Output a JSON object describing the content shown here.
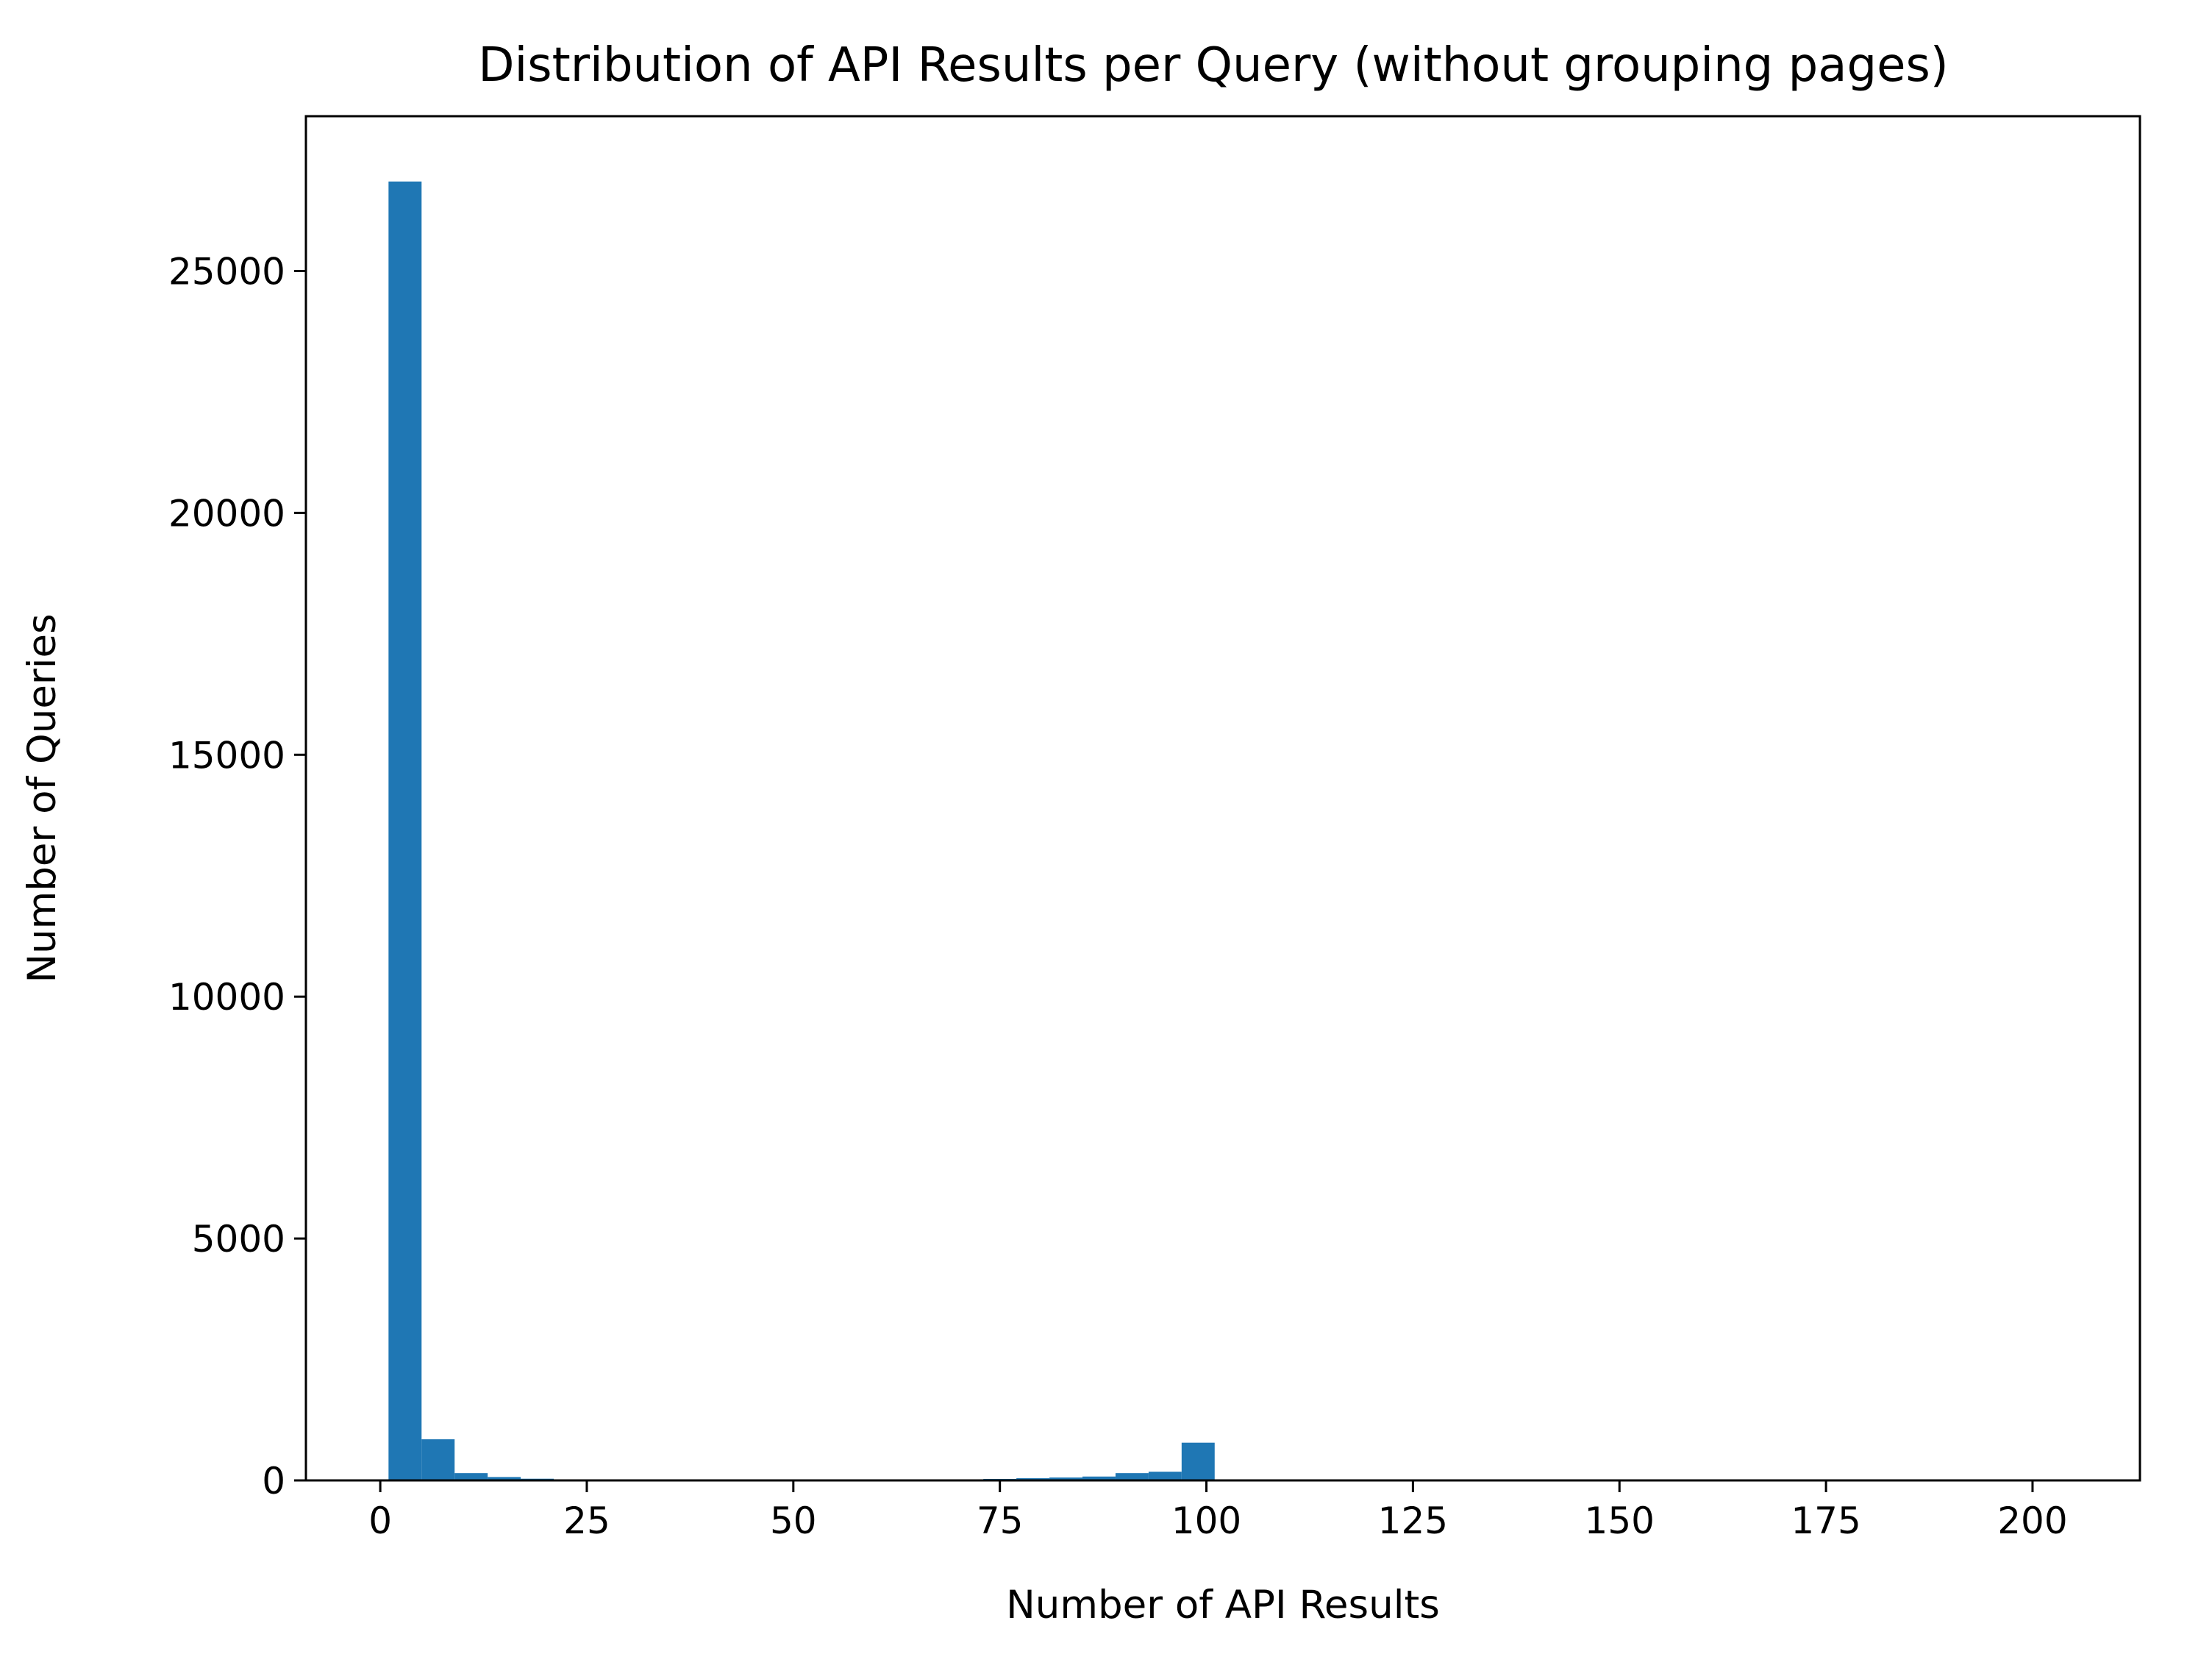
{
  "chart_data": {
    "type": "bar",
    "title": "Distribution of API Results per Query (without grouping pages)",
    "xlabel": "Number of API Results",
    "ylabel": "Number of Queries",
    "xlim": [
      -9,
      213
    ],
    "ylim": [
      0,
      28200
    ],
    "x_ticks": [
      0,
      25,
      50,
      75,
      100,
      125,
      150,
      175,
      200
    ],
    "y_ticks": [
      0,
      5000,
      10000,
      15000,
      20000,
      25000
    ],
    "bin_width": 4,
    "bins": [
      {
        "x0": 1,
        "value": 26850
      },
      {
        "x0": 5,
        "value": 850
      },
      {
        "x0": 9,
        "value": 150
      },
      {
        "x0": 13,
        "value": 70
      },
      {
        "x0": 17,
        "value": 35
      },
      {
        "x0": 21,
        "value": 15
      },
      {
        "x0": 25,
        "value": 10
      },
      {
        "x0": 29,
        "value": 6
      },
      {
        "x0": 33,
        "value": 5
      },
      {
        "x0": 37,
        "value": 4
      },
      {
        "x0": 41,
        "value": 4
      },
      {
        "x0": 45,
        "value": 3
      },
      {
        "x0": 49,
        "value": 3
      },
      {
        "x0": 53,
        "value": 3
      },
      {
        "x0": 57,
        "value": 3
      },
      {
        "x0": 61,
        "value": 3
      },
      {
        "x0": 65,
        "value": 5
      },
      {
        "x0": 69,
        "value": 10
      },
      {
        "x0": 73,
        "value": 30
      },
      {
        "x0": 77,
        "value": 45
      },
      {
        "x0": 81,
        "value": 60
      },
      {
        "x0": 85,
        "value": 80
      },
      {
        "x0": 89,
        "value": 150
      },
      {
        "x0": 93,
        "value": 180
      },
      {
        "x0": 97,
        "value": 780
      },
      {
        "x0": 101,
        "value": 3
      },
      {
        "x0": 105,
        "value": 2
      },
      {
        "x0": 109,
        "value": 2
      },
      {
        "x0": 113,
        "value": 1
      },
      {
        "x0": 117,
        "value": 1
      }
    ],
    "bar_color": "#1f77b4",
    "grid": false,
    "legend": "none"
  }
}
